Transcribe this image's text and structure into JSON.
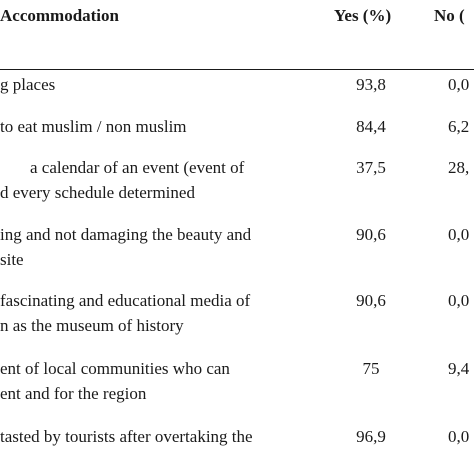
{
  "header": {
    "col1": "Accommodation",
    "col2": "Yes (%)",
    "col3": "No ("
  },
  "rows": [
    {
      "line1": "g places",
      "line2": "",
      "yes": "93,8",
      "no": "0,0"
    },
    {
      "line1": "to eat muslim / non muslim",
      "line2": "",
      "yes": "84,4",
      "no": "6,2"
    },
    {
      "line1": "a calendar of an event (event of",
      "line2": "d every schedule determined",
      "yes": "37,5",
      "no": "28,"
    },
    {
      "line1": "ing and not damaging the beauty and",
      "line2": "site",
      "yes": "90,6",
      "no": "0,0"
    },
    {
      "line1": "fascinating and educational media of",
      "line2": "n as the museum of history",
      "yes": "90,6",
      "no": "0,0"
    },
    {
      "line1": "ent of local communities who can",
      "line2": "ent and for the region",
      "yes": "75",
      "no": "9,4"
    },
    {
      "line1": "tasted by tourists after overtaking the",
      "line2": "",
      "yes": "96,9",
      "no": "0,0"
    }
  ]
}
